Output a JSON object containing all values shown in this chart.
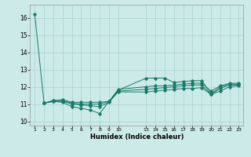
{
  "bg_color": "#cceae7",
  "grid_color": "#aad4d0",
  "line_color": "#1a7a6a",
  "xlabel": "Humidex (Indice chaleur)",
  "xlim": [
    0.5,
    23.5
  ],
  "ylim": [
    9.75,
    16.75
  ],
  "yticks": [
    10,
    11,
    12,
    13,
    14,
    15,
    16
  ],
  "xtick_values": [
    1,
    2,
    3,
    4,
    5,
    6,
    7,
    8,
    9,
    10,
    13,
    14,
    15,
    16,
    17,
    18,
    19,
    20,
    21,
    22,
    23
  ],
  "xtick_labels": [
    "1",
    "2",
    "3",
    "4",
    "5",
    "6",
    "7",
    "8",
    "9",
    "10",
    "13",
    "14",
    "15",
    "16",
    "17",
    "18",
    "19",
    "20",
    "21",
    "22",
    "23"
  ],
  "series1": [
    [
      1,
      16.2
    ],
    [
      2,
      11.05
    ],
    [
      3,
      11.15
    ],
    [
      4,
      11.1
    ],
    [
      5,
      10.85
    ],
    [
      6,
      10.75
    ],
    [
      7,
      10.65
    ],
    [
      8,
      10.45
    ],
    [
      9,
      11.15
    ],
    [
      10,
      11.8
    ],
    [
      13,
      12.5
    ],
    [
      14,
      12.5
    ],
    [
      15,
      12.5
    ],
    [
      16,
      12.25
    ],
    [
      17,
      12.3
    ],
    [
      18,
      12.35
    ],
    [
      19,
      12.35
    ],
    [
      20,
      11.6
    ],
    [
      21,
      12.0
    ],
    [
      22,
      12.15
    ],
    [
      23,
      12.15
    ]
  ],
  "series2": [
    [
      2,
      11.05
    ],
    [
      3,
      11.2
    ],
    [
      4,
      11.25
    ],
    [
      5,
      11.1
    ],
    [
      6,
      11.1
    ],
    [
      7,
      11.1
    ],
    [
      8,
      11.1
    ],
    [
      9,
      11.15
    ],
    [
      10,
      11.85
    ],
    [
      13,
      12.0
    ],
    [
      14,
      12.05
    ],
    [
      15,
      12.05
    ],
    [
      16,
      12.1
    ],
    [
      17,
      12.15
    ],
    [
      18,
      12.2
    ],
    [
      19,
      12.2
    ],
    [
      20,
      11.75
    ],
    [
      21,
      12.05
    ],
    [
      22,
      12.2
    ],
    [
      23,
      12.2
    ]
  ],
  "series3": [
    [
      2,
      11.05
    ],
    [
      3,
      11.2
    ],
    [
      4,
      11.2
    ],
    [
      5,
      11.05
    ],
    [
      6,
      11.0
    ],
    [
      7,
      11.0
    ],
    [
      8,
      11.0
    ],
    [
      9,
      11.15
    ],
    [
      10,
      11.75
    ],
    [
      13,
      11.85
    ],
    [
      14,
      11.9
    ],
    [
      15,
      11.95
    ],
    [
      16,
      12.0
    ],
    [
      17,
      12.05
    ],
    [
      18,
      12.1
    ],
    [
      19,
      12.1
    ],
    [
      20,
      11.55
    ],
    [
      21,
      11.9
    ],
    [
      22,
      12.1
    ],
    [
      23,
      12.1
    ]
  ],
  "series4": [
    [
      2,
      11.05
    ],
    [
      3,
      11.15
    ],
    [
      4,
      11.15
    ],
    [
      5,
      11.0
    ],
    [
      6,
      10.95
    ],
    [
      7,
      10.9
    ],
    [
      8,
      10.85
    ],
    [
      9,
      11.1
    ],
    [
      10,
      11.7
    ],
    [
      13,
      11.7
    ],
    [
      14,
      11.75
    ],
    [
      15,
      11.8
    ],
    [
      16,
      11.85
    ],
    [
      17,
      11.9
    ],
    [
      18,
      11.9
    ],
    [
      19,
      11.95
    ],
    [
      20,
      11.55
    ],
    [
      21,
      11.75
    ],
    [
      22,
      12.0
    ],
    [
      23,
      12.05
    ]
  ]
}
